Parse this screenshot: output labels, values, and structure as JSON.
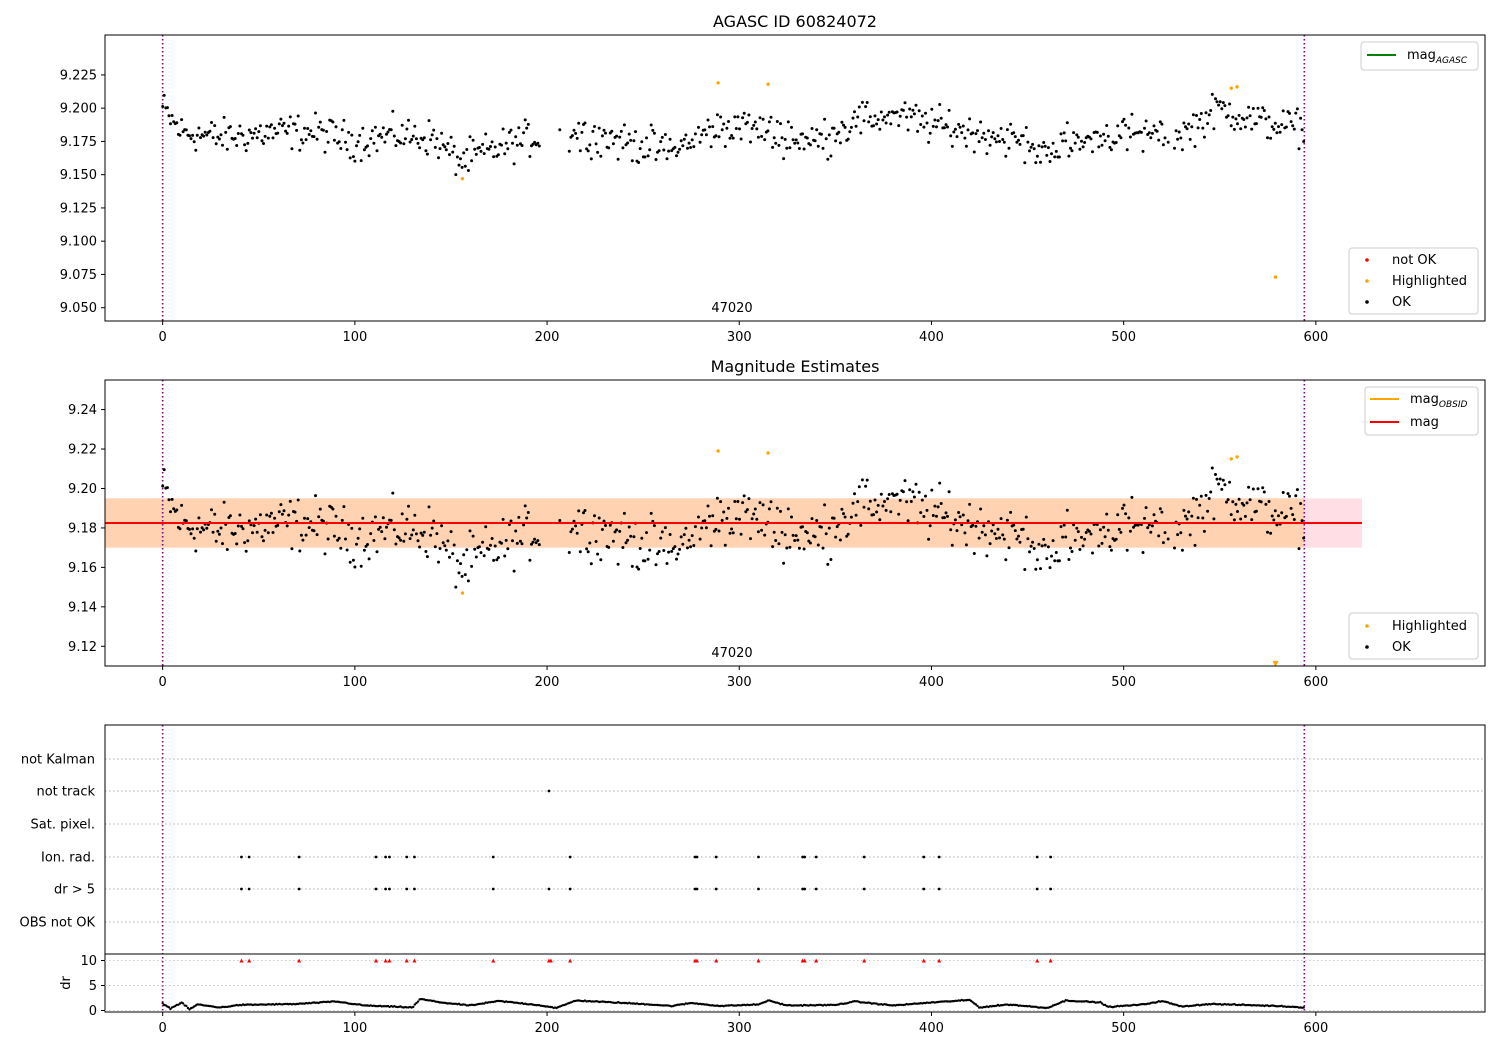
{
  "chart_data": [
    {
      "type": "scatter",
      "title": "AGASC ID 60824072",
      "xlim": [
        -30,
        688
      ],
      "ylim": [
        9.04,
        9.255
      ],
      "x_ticks": [
        "0",
        "100",
        "200",
        "300",
        "400",
        "500",
        "600"
      ],
      "y_ticks": [
        "9.050",
        "9.075",
        "9.100",
        "9.125",
        "9.150",
        "9.175",
        "9.200",
        "9.225"
      ],
      "obsid_annotation": "47020",
      "vlines": [
        0,
        594
      ],
      "legend_lines": [
        {
          "label": "mag",
          "subscript": "AGASC",
          "color": "#008000"
        }
      ],
      "legend_points": [
        {
          "label": "not OK",
          "color": "#ff0000"
        },
        {
          "label": "Highlighted",
          "color": "#ffa500"
        },
        {
          "label": "OK",
          "color": "#000000"
        }
      ],
      "highlighted_points": [
        {
          "x": 156,
          "y": 9.147
        },
        {
          "x": 289,
          "y": 9.219
        },
        {
          "x": 315,
          "y": 9.218
        },
        {
          "x": 556,
          "y": 9.215
        },
        {
          "x": 559,
          "y": 9.216
        },
        {
          "x": 579,
          "y": 9.073
        }
      ],
      "ok_trend": [
        [
          0,
          9.2
        ],
        [
          5,
          9.19
        ],
        [
          10,
          9.182
        ],
        [
          30,
          9.178
        ],
        [
          60,
          9.182
        ],
        [
          80,
          9.182
        ],
        [
          100,
          9.175
        ],
        [
          120,
          9.18
        ],
        [
          140,
          9.178
        ],
        [
          155,
          9.16
        ],
        [
          170,
          9.168
        ],
        [
          185,
          9.175
        ],
        [
          200,
          9.18
        ],
        [
          212,
          9.182
        ],
        [
          230,
          9.178
        ],
        [
          250,
          9.172
        ],
        [
          265,
          9.168
        ],
        [
          280,
          9.18
        ],
        [
          300,
          9.188
        ],
        [
          320,
          9.18
        ],
        [
          340,
          9.175
        ],
        [
          360,
          9.19
        ],
        [
          380,
          9.195
        ],
        [
          400,
          9.188
        ],
        [
          420,
          9.182
        ],
        [
          440,
          9.178
        ],
        [
          455,
          9.168
        ],
        [
          470,
          9.172
        ],
        [
          490,
          9.18
        ],
        [
          510,
          9.18
        ],
        [
          530,
          9.18
        ],
        [
          550,
          9.2
        ],
        [
          570,
          9.19
        ],
        [
          594,
          9.185
        ]
      ]
    },
    {
      "type": "scatter",
      "title": "Magnitude Estimates",
      "xlim": [
        -30,
        688
      ],
      "ylim": [
        9.11,
        9.255
      ],
      "x_ticks": [
        "0",
        "100",
        "200",
        "300",
        "400",
        "500",
        "600"
      ],
      "y_ticks": [
        "9.12",
        "9.14",
        "9.16",
        "9.18",
        "9.20",
        "9.22",
        "9.24"
      ],
      "obsid_annotation": "47020",
      "vlines": [
        0,
        594
      ],
      "mag_line": 9.1825,
      "band_outer": [
        9.17,
        9.195
      ],
      "band_inner": [
        9.17,
        9.195
      ],
      "band_inner_x_end": 594,
      "band_outer_x_end": 624,
      "legend_lines": [
        {
          "label": "mag",
          "subscript": "OBSID",
          "color": "#ffa500"
        },
        {
          "label": "mag",
          "subscript": "",
          "color": "#ff0000"
        }
      ],
      "legend_points": [
        {
          "label": "Highlighted",
          "color": "#ffa500"
        },
        {
          "label": "OK",
          "color": "#000000"
        }
      ],
      "highlighted_points": [
        {
          "x": 156,
          "y": 9.147
        },
        {
          "x": 289,
          "y": 9.219
        },
        {
          "x": 315,
          "y": 9.218
        },
        {
          "x": 556,
          "y": 9.215
        },
        {
          "x": 559,
          "y": 9.216
        }
      ],
      "offscale_marker": {
        "x": 579,
        "y": 9.111
      }
    },
    {
      "type": "scatter",
      "xlim": [
        -30,
        688
      ],
      "vlines": [
        0,
        594
      ],
      "flag_labels": [
        "not Kalman",
        "not track",
        "Sat. pixel.",
        "Ion. rad.",
        "dr > 5",
        "OBS not OK"
      ],
      "flag_points": {
        "not Kalman": [],
        "not track": [
          201
        ],
        "Sat. pixel.": [],
        "Ion. rad.": [
          41,
          45,
          71,
          111,
          116,
          118,
          127,
          131,
          172,
          212,
          277,
          278,
          288,
          310,
          333,
          334,
          340,
          365,
          396,
          404,
          455,
          462
        ],
        "dr > 5": [
          41,
          45,
          71,
          111,
          116,
          118,
          127,
          131,
          172,
          201,
          212,
          277,
          278,
          288,
          310,
          333,
          334,
          340,
          365,
          396,
          404,
          455,
          462
        ],
        "OBS not OK": []
      },
      "dr_ylabel": "dr",
      "dr_ylim": [
        -0.3,
        11.3
      ],
      "dr_ticks": [
        "0",
        "5",
        "10"
      ],
      "dr_high_points": [
        41,
        45,
        71,
        111,
        116,
        118,
        127,
        131,
        172,
        201,
        202,
        212,
        277,
        278,
        288,
        310,
        333,
        334,
        340,
        365,
        396,
        404,
        455,
        462
      ],
      "dr_high_value": 10,
      "dr_profile": [
        [
          0,
          1.4
        ],
        [
          4,
          0.4
        ],
        [
          10,
          1.6
        ],
        [
          14,
          0.2
        ],
        [
          18,
          1.2
        ],
        [
          30,
          0.6
        ],
        [
          40,
          1.1
        ],
        [
          70,
          1.3
        ],
        [
          90,
          1.8
        ],
        [
          105,
          1.0
        ],
        [
          130,
          0.6
        ],
        [
          134,
          2.3
        ],
        [
          145,
          1.6
        ],
        [
          160,
          1.0
        ],
        [
          175,
          1.9
        ],
        [
          195,
          1.1
        ],
        [
          205,
          0.5
        ],
        [
          215,
          2.0
        ],
        [
          250,
          1.3
        ],
        [
          265,
          0.9
        ],
        [
          275,
          1.5
        ],
        [
          290,
          0.9
        ],
        [
          310,
          1.2
        ],
        [
          315,
          2.0
        ],
        [
          325,
          1.0
        ],
        [
          350,
          1.1
        ],
        [
          360,
          1.8
        ],
        [
          380,
          1.0
        ],
        [
          400,
          1.6
        ],
        [
          420,
          2.1
        ],
        [
          425,
          0.6
        ],
        [
          440,
          1.2
        ],
        [
          460,
          0.5
        ],
        [
          470,
          2.0
        ],
        [
          488,
          1.6
        ],
        [
          492,
          0.7
        ],
        [
          510,
          1.2
        ],
        [
          520,
          1.9
        ],
        [
          530,
          0.8
        ],
        [
          545,
          1.3
        ],
        [
          580,
          0.9
        ],
        [
          594,
          0.6
        ]
      ]
    }
  ]
}
